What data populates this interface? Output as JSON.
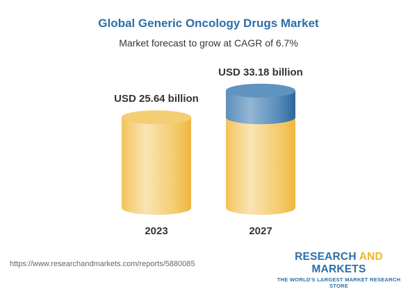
{
  "chart_data": {
    "type": "bar",
    "style": "3d-cylinder",
    "title": "Global Generic Oncology Drugs Market",
    "subtitle": "Market forecast to grow at CAGR of 6.7%",
    "categories": [
      "2023",
      "2027"
    ],
    "values": [
      25.64,
      33.18
    ],
    "unit": "USD billion",
    "data_labels": [
      "USD 25.64 billion",
      "USD 33.18 billion"
    ],
    "grid": false,
    "colors": {
      "base": "#f3c55a",
      "growth": "#4a86b8",
      "title": "#2a6fa8"
    }
  },
  "footer": {
    "url": "https://www.researchandmarkets.com/reports/5880085",
    "logo_word1": "RESEARCH",
    "logo_word2": "AND",
    "logo_word3": "MARKETS",
    "logo_tagline": "THE WORLD'S LARGEST MARKET RESEARCH STORE"
  }
}
